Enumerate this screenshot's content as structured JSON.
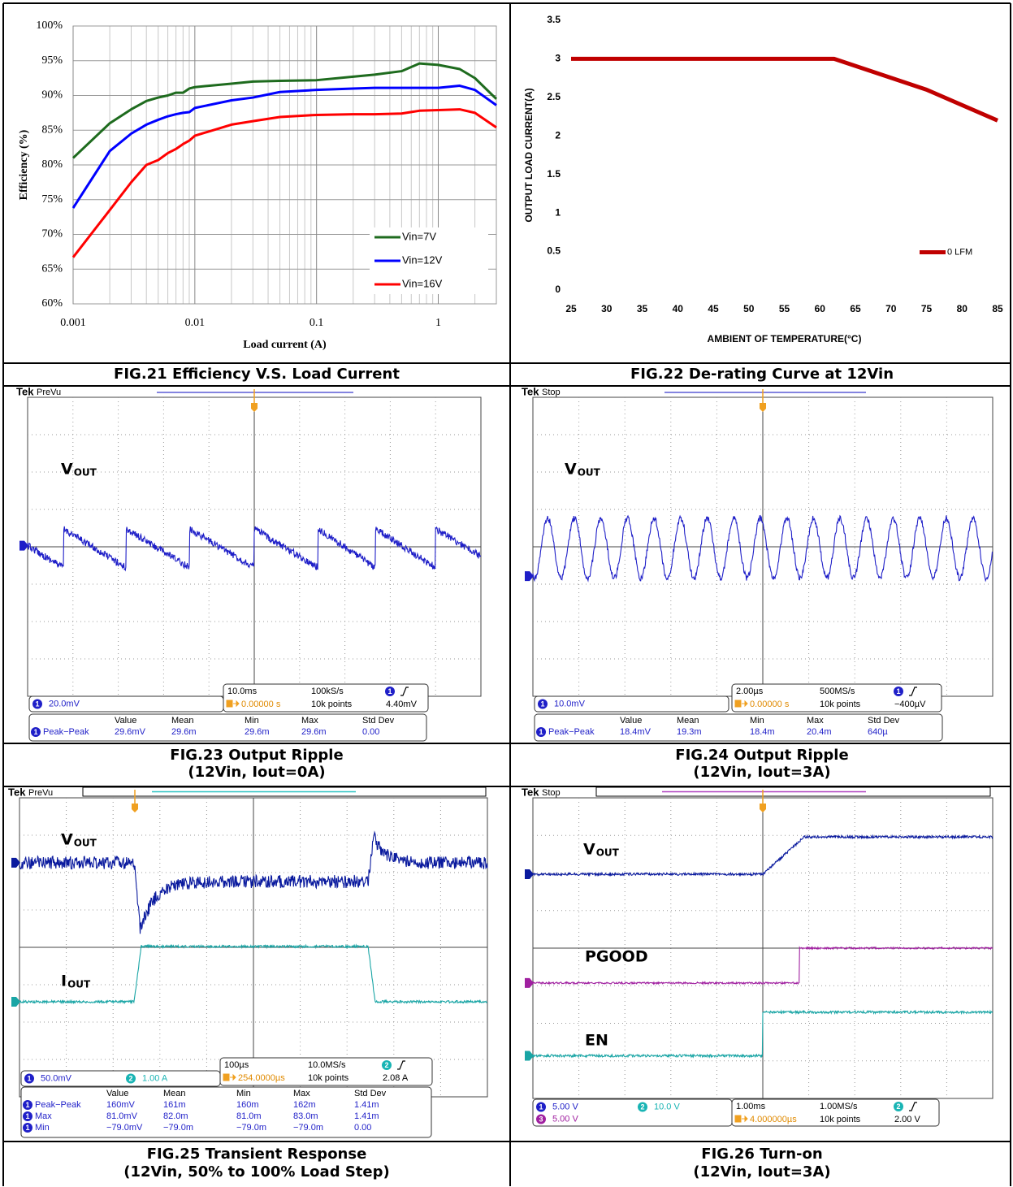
{
  "chart_data": [
    {
      "type": "line",
      "xscale": "log",
      "x": [
        0.001,
        0.002,
        0.003,
        0.004,
        0.005,
        0.006,
        0.007,
        0.008,
        0.009,
        0.01,
        0.02,
        0.03,
        0.05,
        0.1,
        0.2,
        0.3,
        0.5,
        0.7,
        1,
        1.5,
        2,
        3
      ],
      "xlim": [
        0.001,
        3
      ],
      "xticks": [
        0.001,
        0.01,
        0.1,
        1
      ],
      "ylim": [
        60,
        100
      ],
      "yticks": [
        {
          "value": 60,
          "label": "60%"
        },
        {
          "value": 65,
          "label": "65%"
        },
        {
          "value": 70,
          "label": "70%"
        },
        {
          "value": 75,
          "label": "75%"
        },
        {
          "value": 80,
          "label": "80%"
        },
        {
          "value": 85,
          "label": "85%"
        },
        {
          "value": 90,
          "label": "90%"
        },
        {
          "value": 95,
          "label": "95%"
        },
        {
          "value": 100,
          "label": "100%"
        }
      ],
      "xlabel": "Load current (A)",
      "ylabel": "Efficiency (%)",
      "grid": true,
      "legend": "lower right",
      "series": [
        {
          "name": "Vin=7V",
          "color": "#1e6b1e",
          "values": [
            81,
            86,
            88,
            89.2,
            89.7,
            90,
            90.4,
            90.4,
            91,
            91.2,
            91.7,
            92,
            92.1,
            92.2,
            92.7,
            93,
            93.5,
            94.6,
            94.4,
            93.8,
            92.5,
            89.5
          ]
        },
        {
          "name": "Vin=12V",
          "color": "#0000ff",
          "values": [
            73.8,
            82,
            84.5,
            85.8,
            86.5,
            87,
            87.3,
            87.5,
            87.6,
            88.2,
            89.3,
            89.7,
            90.5,
            90.8,
            91,
            91.1,
            91.1,
            91.1,
            91.1,
            91.4,
            90.8,
            88.6
          ]
        },
        {
          "name": "Vin=16V",
          "color": "#ff0000",
          "values": [
            66.7,
            73.5,
            77.5,
            80,
            80.7,
            81.7,
            82.3,
            83,
            83.5,
            84.2,
            85.8,
            86.3,
            86.9,
            87.2,
            87.3,
            87.3,
            87.4,
            87.8,
            87.9,
            88,
            87.5,
            85.4
          ]
        }
      ]
    },
    {
      "type": "line",
      "xscale": "linear",
      "x": [
        25,
        62,
        75,
        85
      ],
      "xlim": [
        25,
        85
      ],
      "xticks": [
        25,
        30,
        35,
        40,
        45,
        50,
        55,
        60,
        65,
        70,
        75,
        80,
        85
      ],
      "ylim": [
        0,
        3.5
      ],
      "yticks": [
        0,
        0.5,
        1,
        1.5,
        2,
        2.5,
        3,
        3.5
      ],
      "xlabel": "AMBIENT OF TEMPERATURE(°C)",
      "ylabel": "OUTPUT LOAD CURRENT(A)",
      "grid": false,
      "legend": "right",
      "series": [
        {
          "name": "0 LFM",
          "color": "#c00000",
          "values": [
            3,
            3,
            2.6,
            2.2
          ]
        }
      ]
    }
  ],
  "captions": [
    [
      "FIG.21 Efficiency V.S. Load Current"
    ],
    [
      "FIG.22 De-rating Curve at 12Vin"
    ],
    [
      "FIG.23 Output Ripple",
      "(12Vin, Iout=0A)"
    ],
    [
      "FIG.24 Output Ripple",
      "(12Vin, Iout=3A)"
    ],
    [
      "FIG.25 Transient Response",
      "(12Vin, 50% to 100% Load Step)"
    ],
    [
      "FIG.26 Turn-on",
      "(12Vin, Iout=3A)"
    ]
  ],
  "scopes": [
    {
      "brand": "Tek",
      "state": "PreVu",
      "traces": [
        {
          "text": "V",
          "sub": "OUT",
          "color": "#1f1fc8"
        }
      ],
      "channels": [
        {
          "ch": "1",
          "scale": "20.0mV",
          "color": "#1f1fc8"
        }
      ],
      "timebase": {
        "scale": "10.0ms",
        "rate": "100kS/s",
        "position": "0.00000 s",
        "points": "10k points",
        "trig_ch": "1",
        "trig_level": "4.40mV"
      },
      "measure": {
        "headers": [
          "Value",
          "Mean",
          "Min",
          "Max",
          "Std Dev"
        ],
        "rows": [
          {
            "ch": "1",
            "name": "Peak−Peak",
            "cells": [
              "29.6mV",
              "29.6m",
              "29.6m",
              "29.6m",
              "0.00"
            ]
          }
        ]
      }
    },
    {
      "brand": "Tek",
      "state": "Stop",
      "traces": [
        {
          "text": "V",
          "sub": "OUT",
          "color": "#1f1fc8"
        }
      ],
      "channels": [
        {
          "ch": "1",
          "scale": "10.0mV",
          "color": "#1f1fc8"
        }
      ],
      "timebase": {
        "scale": "2.00µs",
        "rate": "500MS/s",
        "position": "0.00000 s",
        "points": "10k points",
        "trig_ch": "1",
        "trig_level": "−400µV"
      },
      "measure": {
        "headers": [
          "Value",
          "Mean",
          "Min",
          "Max",
          "Std Dev"
        ],
        "rows": [
          {
            "ch": "1",
            "name": "Peak−Peak",
            "cells": [
              "18.4mV",
              "19.3m",
              "18.4m",
              "20.4m",
              "640µ"
            ]
          }
        ]
      }
    },
    {
      "brand": "Tek",
      "state": "PreVu",
      "traces": [
        {
          "text": "V",
          "sub": "OUT",
          "color": "#0a1a9e"
        },
        {
          "text": "I",
          "sub": "OUT",
          "color": "#19a5a5"
        }
      ],
      "channels": [
        {
          "ch": "1",
          "scale": "50.0mV",
          "color": "#1f1fc8"
        },
        {
          "ch": "2",
          "scale": "1.00 A",
          "color": "#19b4b4"
        }
      ],
      "timebase": {
        "scale": "100µs",
        "rate": "10.0MS/s",
        "position": "254.0000µs",
        "points": "10k points",
        "trig_ch": "2",
        "trig_level": "2.08 A"
      },
      "measure": {
        "headers": [
          "Value",
          "Mean",
          "Min",
          "Max",
          "Std Dev"
        ],
        "rows": [
          {
            "ch": "1",
            "name": "Peak−Peak",
            "cells": [
              "160mV",
              "161m",
              "160m",
              "162m",
              "1.41m"
            ]
          },
          {
            "ch": "1",
            "name": "Max",
            "cells": [
              "81.0mV",
              "82.0m",
              "81.0m",
              "83.0m",
              "1.41m"
            ]
          },
          {
            "ch": "1",
            "name": "Min",
            "cells": [
              "−79.0mV",
              "−79.0m",
              "−79.0m",
              "−79.0m",
              "0.00"
            ]
          }
        ]
      }
    },
    {
      "brand": "Tek",
      "state": "Stop",
      "traces": [
        {
          "text": "V",
          "sub": "OUT",
          "color": "#0a1a9e"
        },
        {
          "text": "PGOOD",
          "color": "#a020a0"
        },
        {
          "text": "EN",
          "color": "#19a5a5"
        }
      ],
      "channels": [
        {
          "ch": "1",
          "scale": "5.00 V",
          "color": "#1f1fc8"
        },
        {
          "ch": "2",
          "scale": "10.0 V",
          "color": "#19b4b4"
        },
        {
          "ch": "3",
          "scale": "5.00 V",
          "color": "#a020a0"
        }
      ],
      "timebase": {
        "scale": "1.00ms",
        "rate": "1.00MS/s",
        "position": "4.000000µs",
        "points": "10k points",
        "trig_ch": "2",
        "trig_level": "2.00 V"
      }
    }
  ]
}
